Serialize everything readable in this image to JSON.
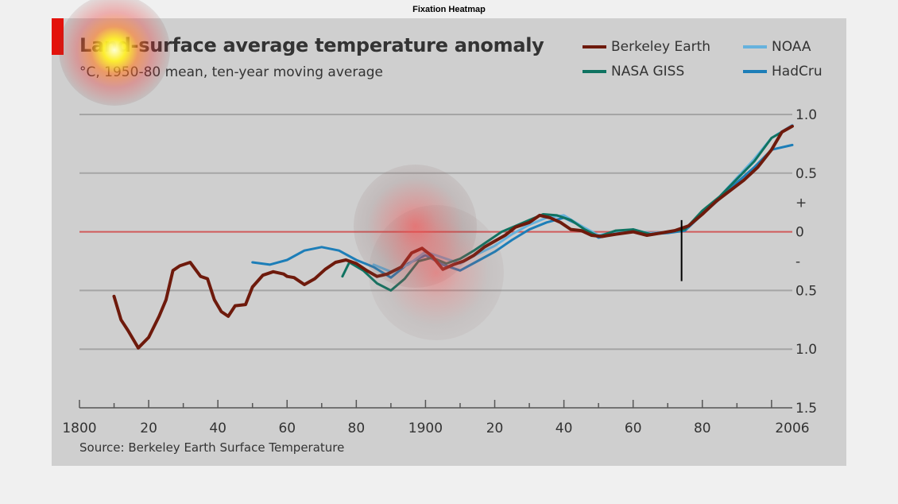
{
  "figure_title": "Fixation Heatmap",
  "chart_data": {
    "type": "line",
    "title": "Land-surface average temperature anomaly",
    "subtitle": "°C, 1950-80 mean, ten-year moving average",
    "source": "Source: Berkeley Earth Surface Temperature",
    "xlim": [
      1800,
      2006
    ],
    "ylim": [
      -1.5,
      1.0
    ],
    "x_ticks": [
      1800,
      1820,
      1840,
      1860,
      1880,
      1900,
      1920,
      1940,
      1960,
      1980,
      2006
    ],
    "x_tick_labels": [
      "1800",
      "20",
      "40",
      "60",
      "80",
      "1900",
      "20",
      "40",
      "60",
      "80",
      "2006"
    ],
    "y_ticks": [
      {
        "value": 1.0,
        "label": "1.0",
        "grid": true
      },
      {
        "value": 0.5,
        "label": "0.5",
        "grid": true
      },
      {
        "value": 0.25,
        "label": "+",
        "grid": false
      },
      {
        "value": 0.0,
        "label": "0",
        "grid": true,
        "zero": true
      },
      {
        "value": -0.25,
        "label": "-",
        "grid": false
      },
      {
        "value": -0.5,
        "label": "0.5",
        "grid": true
      },
      {
        "value": -1.0,
        "label": "1.0",
        "grid": true
      },
      {
        "value": -1.5,
        "label": "1.5",
        "grid": false
      }
    ],
    "legend_position": "top-right",
    "series": [
      {
        "name": "HadCru",
        "color": "#1d7eb8",
        "width": 3,
        "x": [
          1850,
          1855,
          1860,
          1865,
          1870,
          1875,
          1880,
          1885,
          1890,
          1895,
          1900,
          1905,
          1910,
          1915,
          1920,
          1925,
          1930,
          1935,
          1940,
          1945,
          1950,
          1955,
          1960,
          1965,
          1970,
          1975,
          1980,
          1985,
          1990,
          1995,
          2000,
          2006
        ],
        "y": [
          -0.26,
          -0.28,
          -0.24,
          -0.16,
          -0.13,
          -0.16,
          -0.24,
          -0.3,
          -0.39,
          -0.27,
          -0.2,
          -0.28,
          -0.33,
          -0.25,
          -0.17,
          -0.07,
          0.02,
          0.08,
          0.12,
          0.05,
          -0.05,
          -0.01,
          0.02,
          -0.02,
          -0.01,
          0.01,
          0.15,
          0.28,
          0.42,
          0.55,
          0.7,
          0.74
        ]
      },
      {
        "name": "NOAA",
        "color": "#66b2dd",
        "width": 3,
        "x": [
          1885,
          1890,
          1895,
          1900,
          1905,
          1910,
          1915,
          1920,
          1925,
          1930,
          1935,
          1940,
          1945,
          1950,
          1955,
          1960,
          1965,
          1970,
          1975,
          1980,
          1985,
          1990,
          1995,
          2000,
          2006
        ],
        "y": [
          -0.28,
          -0.34,
          -0.28,
          -0.17,
          -0.22,
          -0.27,
          -0.19,
          -0.12,
          -0.02,
          0.06,
          0.12,
          0.14,
          0.05,
          -0.03,
          0.0,
          0.01,
          -0.01,
          0.0,
          0.02,
          0.16,
          0.3,
          0.46,
          0.62,
          0.8,
          0.91
        ]
      },
      {
        "name": "NASA GISS",
        "color": "#0f7361",
        "width": 3,
        "x": [
          1876,
          1878,
          1882,
          1886,
          1890,
          1894,
          1898,
          1902,
          1906,
          1910,
          1914,
          1918,
          1922,
          1926,
          1930,
          1934,
          1938,
          1942,
          1946,
          1950,
          1955,
          1960,
          1965,
          1970,
          1975,
          1980,
          1985,
          1990,
          1995,
          2000,
          2006
        ],
        "y": [
          -0.38,
          -0.26,
          -0.33,
          -0.44,
          -0.5,
          -0.4,
          -0.25,
          -0.22,
          -0.27,
          -0.23,
          -0.16,
          -0.08,
          0.0,
          0.05,
          0.1,
          0.15,
          0.14,
          0.1,
          0.02,
          -0.04,
          0.01,
          0.02,
          -0.02,
          0.0,
          0.02,
          0.18,
          0.3,
          0.45,
          0.6,
          0.8,
          0.9
        ]
      },
      {
        "name": "Berkeley Earth",
        "color": "#6e1a0c",
        "width": 4,
        "x": [
          1810,
          1812,
          1814,
          1817,
          1820,
          1823,
          1825,
          1827,
          1829,
          1832,
          1835,
          1837,
          1839,
          1841,
          1843,
          1845,
          1848,
          1850,
          1853,
          1856,
          1859,
          1860,
          1862,
          1865,
          1868,
          1871,
          1874,
          1877,
          1880,
          1883,
          1886,
          1889,
          1893,
          1896,
          1899,
          1902,
          1905,
          1908,
          1911,
          1914,
          1917,
          1920,
          1923,
          1926,
          1930,
          1933,
          1936,
          1939,
          1942,
          1945,
          1948,
          1951,
          1955,
          1960,
          1964,
          1968,
          1972,
          1976,
          1980,
          1984,
          1988,
          1992,
          1996,
          2000,
          2003,
          2006
        ],
        "y": [
          -0.55,
          -0.75,
          -0.84,
          -0.99,
          -0.9,
          -0.72,
          -0.58,
          -0.33,
          -0.29,
          -0.26,
          -0.38,
          -0.4,
          -0.58,
          -0.68,
          -0.72,
          -0.63,
          -0.62,
          -0.47,
          -0.37,
          -0.34,
          -0.36,
          -0.38,
          -0.39,
          -0.45,
          -0.4,
          -0.32,
          -0.26,
          -0.24,
          -0.27,
          -0.33,
          -0.38,
          -0.36,
          -0.3,
          -0.18,
          -0.14,
          -0.21,
          -0.32,
          -0.28,
          -0.25,
          -0.2,
          -0.13,
          -0.08,
          -0.03,
          0.04,
          0.08,
          0.14,
          0.12,
          0.08,
          0.02,
          0.01,
          -0.03,
          -0.04,
          -0.02,
          0.0,
          -0.03,
          -0.01,
          0.01,
          0.05,
          0.15,
          0.26,
          0.35,
          0.44,
          0.55,
          0.7,
          0.85,
          0.9
        ]
      }
    ]
  },
  "legend": [
    {
      "label": "Berkeley Earth",
      "color": "#6e1a0c"
    },
    {
      "label": "NASA GISS",
      "color": "#0f7361"
    },
    {
      "label": "NOAA",
      "color": "#66b2dd"
    },
    {
      "label": "HadCru",
      "color": "#1d7eb8"
    }
  ],
  "colors": {
    "accent": "#e3120b",
    "grid": "#a5a5a5",
    "zero_line": "#d05a5a",
    "panel_bg": "#cfcfcf",
    "text": "#333333"
  },
  "heatmap_fixations": [
    {
      "x": 1810,
      "y": 1.55,
      "intensity": 1.0
    },
    {
      "x": 1897,
      "y": 0.05,
      "intensity": 0.75
    },
    {
      "x": 1903,
      "y": -0.35,
      "intensity": 0.5
    }
  ]
}
